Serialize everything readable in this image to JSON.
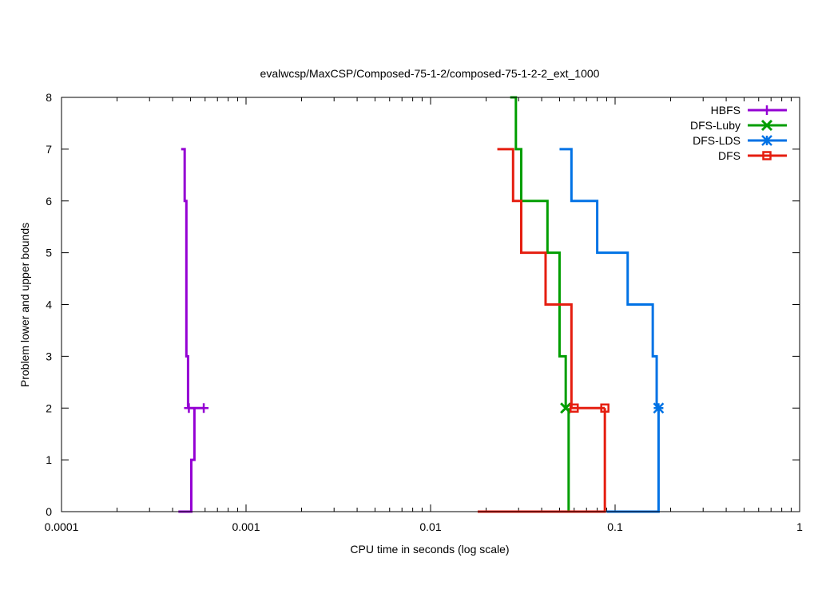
{
  "chart_data": {
    "type": "line",
    "title": "evalwcsp/MaxCSP/Composed-75-1-2/composed-75-1-2-2_ext_1000",
    "xlabel": "CPU time in seconds (log scale)",
    "ylabel": "Problem lower and upper bounds",
    "xscale": "log",
    "xlim": [
      0.0001,
      1
    ],
    "ylim": [
      0,
      8
    ],
    "x_ticks": [
      {
        "value": 0.0001,
        "label": "0.0001"
      },
      {
        "value": 0.001,
        "label": "0.001"
      },
      {
        "value": 0.01,
        "label": "0.01"
      },
      {
        "value": 0.1,
        "label": "0.1"
      },
      {
        "value": 1,
        "label": "1"
      }
    ],
    "y_ticks": [
      {
        "value": 0,
        "label": "0"
      },
      {
        "value": 1,
        "label": "1"
      },
      {
        "value": 2,
        "label": "2"
      },
      {
        "value": 3,
        "label": "3"
      },
      {
        "value": 4,
        "label": "4"
      },
      {
        "value": 5,
        "label": "5"
      },
      {
        "value": 6,
        "label": "6"
      },
      {
        "value": 7,
        "label": "7"
      },
      {
        "value": 8,
        "label": "8"
      }
    ],
    "legend_position": "top-right",
    "series": [
      {
        "name": "HBFS",
        "color": "#9400d3",
        "marker": "plus",
        "steps": [
          [
            0.000445,
            7
          ],
          [
            0.000465,
            7
          ],
          [
            0.000465,
            6
          ],
          [
            0.000475,
            6
          ],
          [
            0.000475,
            3
          ],
          [
            0.000485,
            3
          ],
          [
            0.000485,
            2
          ],
          [
            0.000485,
            2
          ]
        ],
        "steps_lower": [
          [
            0.00043,
            0
          ],
          [
            0.000505,
            0
          ],
          [
            0.000505,
            1
          ],
          [
            0.000525,
            1
          ],
          [
            0.000525,
            2
          ],
          [
            0.00049,
            2
          ],
          [
            0.00059,
            2
          ]
        ],
        "markers": [
          [
            0.00049,
            2
          ],
          [
            0.00059,
            2
          ]
        ]
      },
      {
        "name": "DFS-Luby",
        "color": "#009e00",
        "marker": "x",
        "steps": [
          [
            0.027,
            8
          ],
          [
            0.029,
            8
          ],
          [
            0.029,
            7
          ],
          [
            0.031,
            7
          ],
          [
            0.031,
            6
          ],
          [
            0.043,
            6
          ],
          [
            0.043,
            5
          ],
          [
            0.05,
            5
          ],
          [
            0.05,
            3
          ],
          [
            0.054,
            3
          ],
          [
            0.054,
            2
          ]
        ],
        "steps_lower": [
          [
            0.056,
            0
          ],
          [
            0.056,
            2
          ]
        ],
        "markers": [
          [
            0.054,
            2
          ]
        ]
      },
      {
        "name": "DFS-LDS",
        "color": "#0072e5",
        "marker": "star",
        "steps": [
          [
            0.05,
            7
          ],
          [
            0.058,
            7
          ],
          [
            0.058,
            6
          ],
          [
            0.08,
            6
          ],
          [
            0.08,
            5
          ],
          [
            0.117,
            5
          ],
          [
            0.117,
            4
          ],
          [
            0.16,
            4
          ],
          [
            0.16,
            3
          ],
          [
            0.168,
            3
          ],
          [
            0.168,
            2
          ]
        ],
        "steps_lower": [
          [
            0.09,
            0
          ],
          [
            0.172,
            0
          ],
          [
            0.172,
            2
          ]
        ],
        "markers": [
          [
            0.172,
            2
          ]
        ]
      },
      {
        "name": "DFS",
        "color": "#e51e10",
        "marker": "square",
        "steps": [
          [
            0.023,
            7
          ],
          [
            0.028,
            7
          ],
          [
            0.028,
            6
          ],
          [
            0.031,
            6
          ],
          [
            0.031,
            5
          ],
          [
            0.042,
            5
          ],
          [
            0.042,
            4
          ],
          [
            0.058,
            4
          ],
          [
            0.058,
            2
          ],
          [
            0.088,
            2
          ]
        ],
        "steps_lower": [
          [
            0.018,
            0
          ],
          [
            0.088,
            0
          ],
          [
            0.088,
            2
          ]
        ],
        "markers": [
          [
            0.06,
            2
          ],
          [
            0.088,
            2
          ]
        ]
      }
    ]
  }
}
